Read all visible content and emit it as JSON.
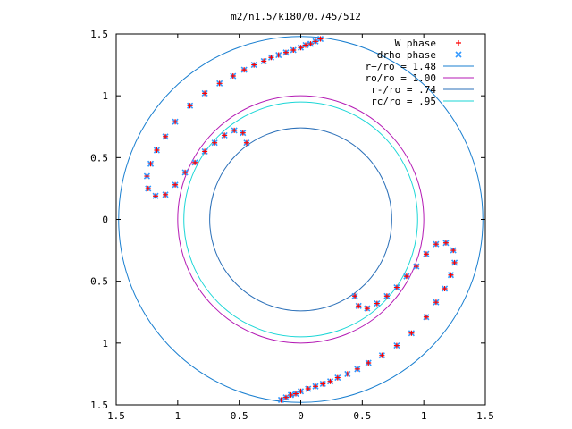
{
  "chart_data": {
    "type": "scatter",
    "title": "m2/n1.5/k180/0.745/512",
    "xlabel": "",
    "ylabel": "",
    "xlim": [
      -1.5,
      1.5
    ],
    "ylim": [
      -1.5,
      1.5
    ],
    "xtick_labels": [
      "1.5",
      "1",
      "0.5",
      "0",
      "0.5",
      "1",
      "1.5"
    ],
    "ytick_labels": [
      "1.5",
      "1",
      "0.5",
      "0",
      "0.5",
      "1",
      "1.5"
    ],
    "grid": false,
    "legend_position": "top-right",
    "series": [
      {
        "name": "W phase",
        "kind": "points",
        "marker": "+",
        "color": "#ff0000",
        "points": [
          [
            0.16,
            1.46
          ],
          [
            0.12,
            1.44
          ],
          [
            0.08,
            1.42
          ],
          [
            0.04,
            1.41
          ],
          [
            0.0,
            1.39
          ],
          [
            -0.06,
            1.37
          ],
          [
            -0.12,
            1.35
          ],
          [
            -0.18,
            1.33
          ],
          [
            -0.24,
            1.31
          ],
          [
            -0.3,
            1.28
          ],
          [
            -0.38,
            1.25
          ],
          [
            -0.46,
            1.21
          ],
          [
            -0.55,
            1.16
          ],
          [
            -0.66,
            1.1
          ],
          [
            -0.78,
            1.02
          ],
          [
            -0.9,
            0.92
          ],
          [
            -1.02,
            0.79
          ],
          [
            -1.1,
            0.67
          ],
          [
            -1.17,
            0.56
          ],
          [
            -1.22,
            0.45
          ],
          [
            -1.25,
            0.35
          ],
          [
            -1.24,
            0.25
          ],
          [
            -1.18,
            0.19
          ],
          [
            -1.1,
            0.2
          ],
          [
            -1.02,
            0.28
          ],
          [
            -0.94,
            0.38
          ],
          [
            -0.86,
            0.46
          ],
          [
            -0.78,
            0.55
          ],
          [
            -0.7,
            0.62
          ],
          [
            -0.62,
            0.68
          ],
          [
            -0.54,
            0.72
          ],
          [
            -0.47,
            0.7
          ],
          [
            -0.44,
            0.62
          ],
          [
            -0.16,
            -1.46
          ],
          [
            -0.12,
            -1.44
          ],
          [
            -0.08,
            -1.42
          ],
          [
            -0.04,
            -1.41
          ],
          [
            0.0,
            -1.39
          ],
          [
            0.06,
            -1.37
          ],
          [
            0.12,
            -1.35
          ],
          [
            0.18,
            -1.33
          ],
          [
            0.24,
            -1.31
          ],
          [
            0.3,
            -1.28
          ],
          [
            0.38,
            -1.25
          ],
          [
            0.46,
            -1.21
          ],
          [
            0.55,
            -1.16
          ],
          [
            0.66,
            -1.1
          ],
          [
            0.78,
            -1.02
          ],
          [
            0.9,
            -0.92
          ],
          [
            1.02,
            -0.79
          ],
          [
            1.1,
            -0.67
          ],
          [
            1.17,
            -0.56
          ],
          [
            1.22,
            -0.45
          ],
          [
            1.25,
            -0.35
          ],
          [
            1.24,
            -0.25
          ],
          [
            1.18,
            -0.19
          ],
          [
            1.1,
            -0.2
          ],
          [
            1.02,
            -0.28
          ],
          [
            0.94,
            -0.38
          ],
          [
            0.86,
            -0.46
          ],
          [
            0.78,
            -0.55
          ],
          [
            0.7,
            -0.62
          ],
          [
            0.62,
            -0.68
          ],
          [
            0.54,
            -0.72
          ],
          [
            0.47,
            -0.7
          ],
          [
            0.44,
            -0.62
          ]
        ]
      },
      {
        "name": "drho phase",
        "kind": "points",
        "marker": "x",
        "color": "#3399ff",
        "points": [
          [
            0.16,
            1.46
          ],
          [
            0.12,
            1.44
          ],
          [
            0.08,
            1.42
          ],
          [
            0.04,
            1.41
          ],
          [
            0.0,
            1.39
          ],
          [
            -0.06,
            1.37
          ],
          [
            -0.12,
            1.35
          ],
          [
            -0.18,
            1.33
          ],
          [
            -0.24,
            1.31
          ],
          [
            -0.3,
            1.28
          ],
          [
            -0.38,
            1.25
          ],
          [
            -0.46,
            1.21
          ],
          [
            -0.55,
            1.16
          ],
          [
            -0.66,
            1.1
          ],
          [
            -0.78,
            1.02
          ],
          [
            -0.9,
            0.92
          ],
          [
            -1.02,
            0.79
          ],
          [
            -1.1,
            0.67
          ],
          [
            -1.17,
            0.56
          ],
          [
            -1.22,
            0.45
          ],
          [
            -1.25,
            0.35
          ],
          [
            -1.24,
            0.25
          ],
          [
            -1.18,
            0.19
          ],
          [
            -1.1,
            0.2
          ],
          [
            -1.02,
            0.28
          ],
          [
            -0.94,
            0.38
          ],
          [
            -0.86,
            0.46
          ],
          [
            -0.78,
            0.55
          ],
          [
            -0.7,
            0.62
          ],
          [
            -0.62,
            0.68
          ],
          [
            -0.54,
            0.72
          ],
          [
            -0.47,
            0.7
          ],
          [
            -0.44,
            0.62
          ],
          [
            -0.16,
            -1.46
          ],
          [
            -0.12,
            -1.44
          ],
          [
            -0.08,
            -1.42
          ],
          [
            -0.04,
            -1.41
          ],
          [
            0.0,
            -1.39
          ],
          [
            0.06,
            -1.37
          ],
          [
            0.12,
            -1.35
          ],
          [
            0.18,
            -1.33
          ],
          [
            0.24,
            -1.31
          ],
          [
            0.3,
            -1.28
          ],
          [
            0.38,
            -1.25
          ],
          [
            0.46,
            -1.21
          ],
          [
            0.55,
            -1.16
          ],
          [
            0.66,
            -1.1
          ],
          [
            0.78,
            -1.02
          ],
          [
            0.9,
            -0.92
          ],
          [
            1.02,
            -0.79
          ],
          [
            1.1,
            -0.67
          ],
          [
            1.17,
            -0.56
          ],
          [
            1.22,
            -0.45
          ],
          [
            1.25,
            -0.35
          ],
          [
            1.24,
            -0.25
          ],
          [
            1.18,
            -0.19
          ],
          [
            1.1,
            -0.2
          ],
          [
            1.02,
            -0.28
          ],
          [
            0.94,
            -0.38
          ],
          [
            0.86,
            -0.46
          ],
          [
            0.78,
            -0.55
          ],
          [
            0.7,
            -0.62
          ],
          [
            0.62,
            -0.68
          ],
          [
            0.54,
            -0.72
          ],
          [
            0.47,
            -0.7
          ],
          [
            0.44,
            -0.62
          ]
        ]
      },
      {
        "name": "r+/ro = 1.48",
        "kind": "circle",
        "radius": 1.48,
        "color": "#1a7fd0"
      },
      {
        "name": "ro/ro = 1.00",
        "kind": "circle",
        "radius": 1.0,
        "color": "#b41ab4"
      },
      {
        "name": "r-/ro = .74",
        "kind": "circle",
        "radius": 0.74,
        "color": "#2a6fb8"
      },
      {
        "name": "rc/ro = .95",
        "kind": "circle",
        "radius": 0.95,
        "color": "#1ad6d6"
      }
    ]
  }
}
